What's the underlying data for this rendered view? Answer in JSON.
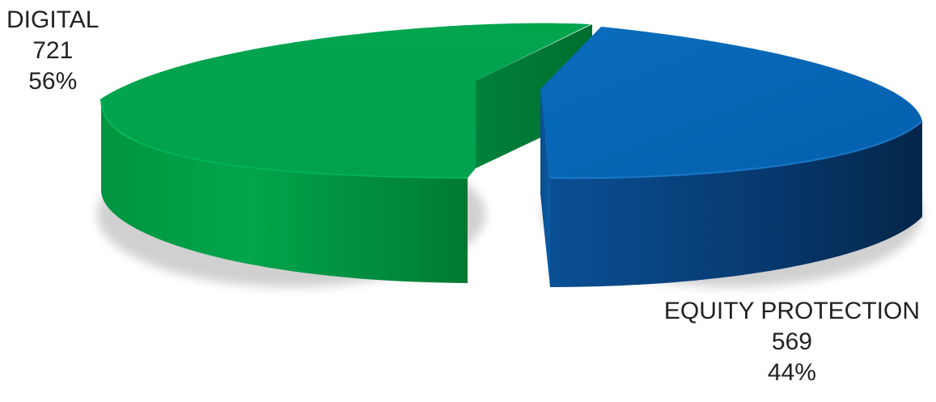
{
  "chart_data": {
    "type": "pie",
    "style": "3d-exploded",
    "title": "",
    "slices": [
      {
        "name": "DIGITAL",
        "value": 721,
        "percent": "56%",
        "color": "#00A551"
      },
      {
        "name": "EQUITY PROTECTION",
        "value": 569,
        "percent": "44%",
        "color": "#0567B8"
      }
    ],
    "legend": "none"
  }
}
